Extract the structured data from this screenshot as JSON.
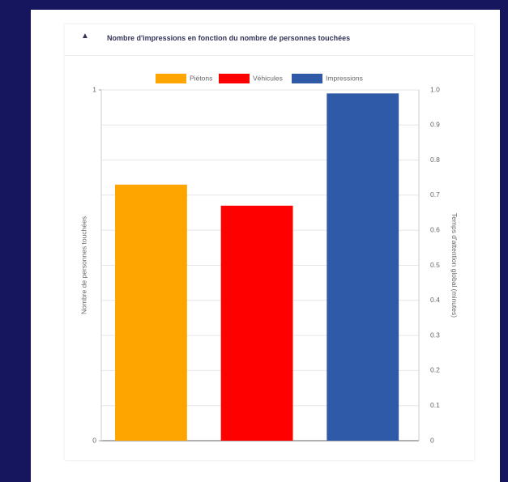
{
  "chart_data": {
    "type": "bar",
    "title": "Nombre d'impressions en fonction du nombre de personnes touchées",
    "y_label": "Nombre de personnes touchées",
    "y2_label": "Temps d'attention global (minutes)",
    "categories": [
      null
    ],
    "series": [
      {
        "name": "Piétons",
        "color": "#ffa500",
        "values": [
          0.73
        ]
      },
      {
        "name": "Véhicules",
        "color": "#ff0000",
        "values": [
          0.67
        ]
      },
      {
        "name": "Impressions",
        "color": "#2f5aa8",
        "values": [
          0.99
        ],
        "axis": "y2"
      }
    ],
    "ylim": [
      0,
      1
    ],
    "yticks": [
      0,
      1
    ],
    "y2lim": [
      0,
      1
    ],
    "y2ticks": [
      0,
      0.1,
      0.2,
      0.3,
      0.4,
      0.5,
      0.6,
      0.7,
      0.8,
      0.9,
      {
        "value": 1,
        "label": "1.0"
      }
    ],
    "grid": true,
    "legend": "top"
  }
}
